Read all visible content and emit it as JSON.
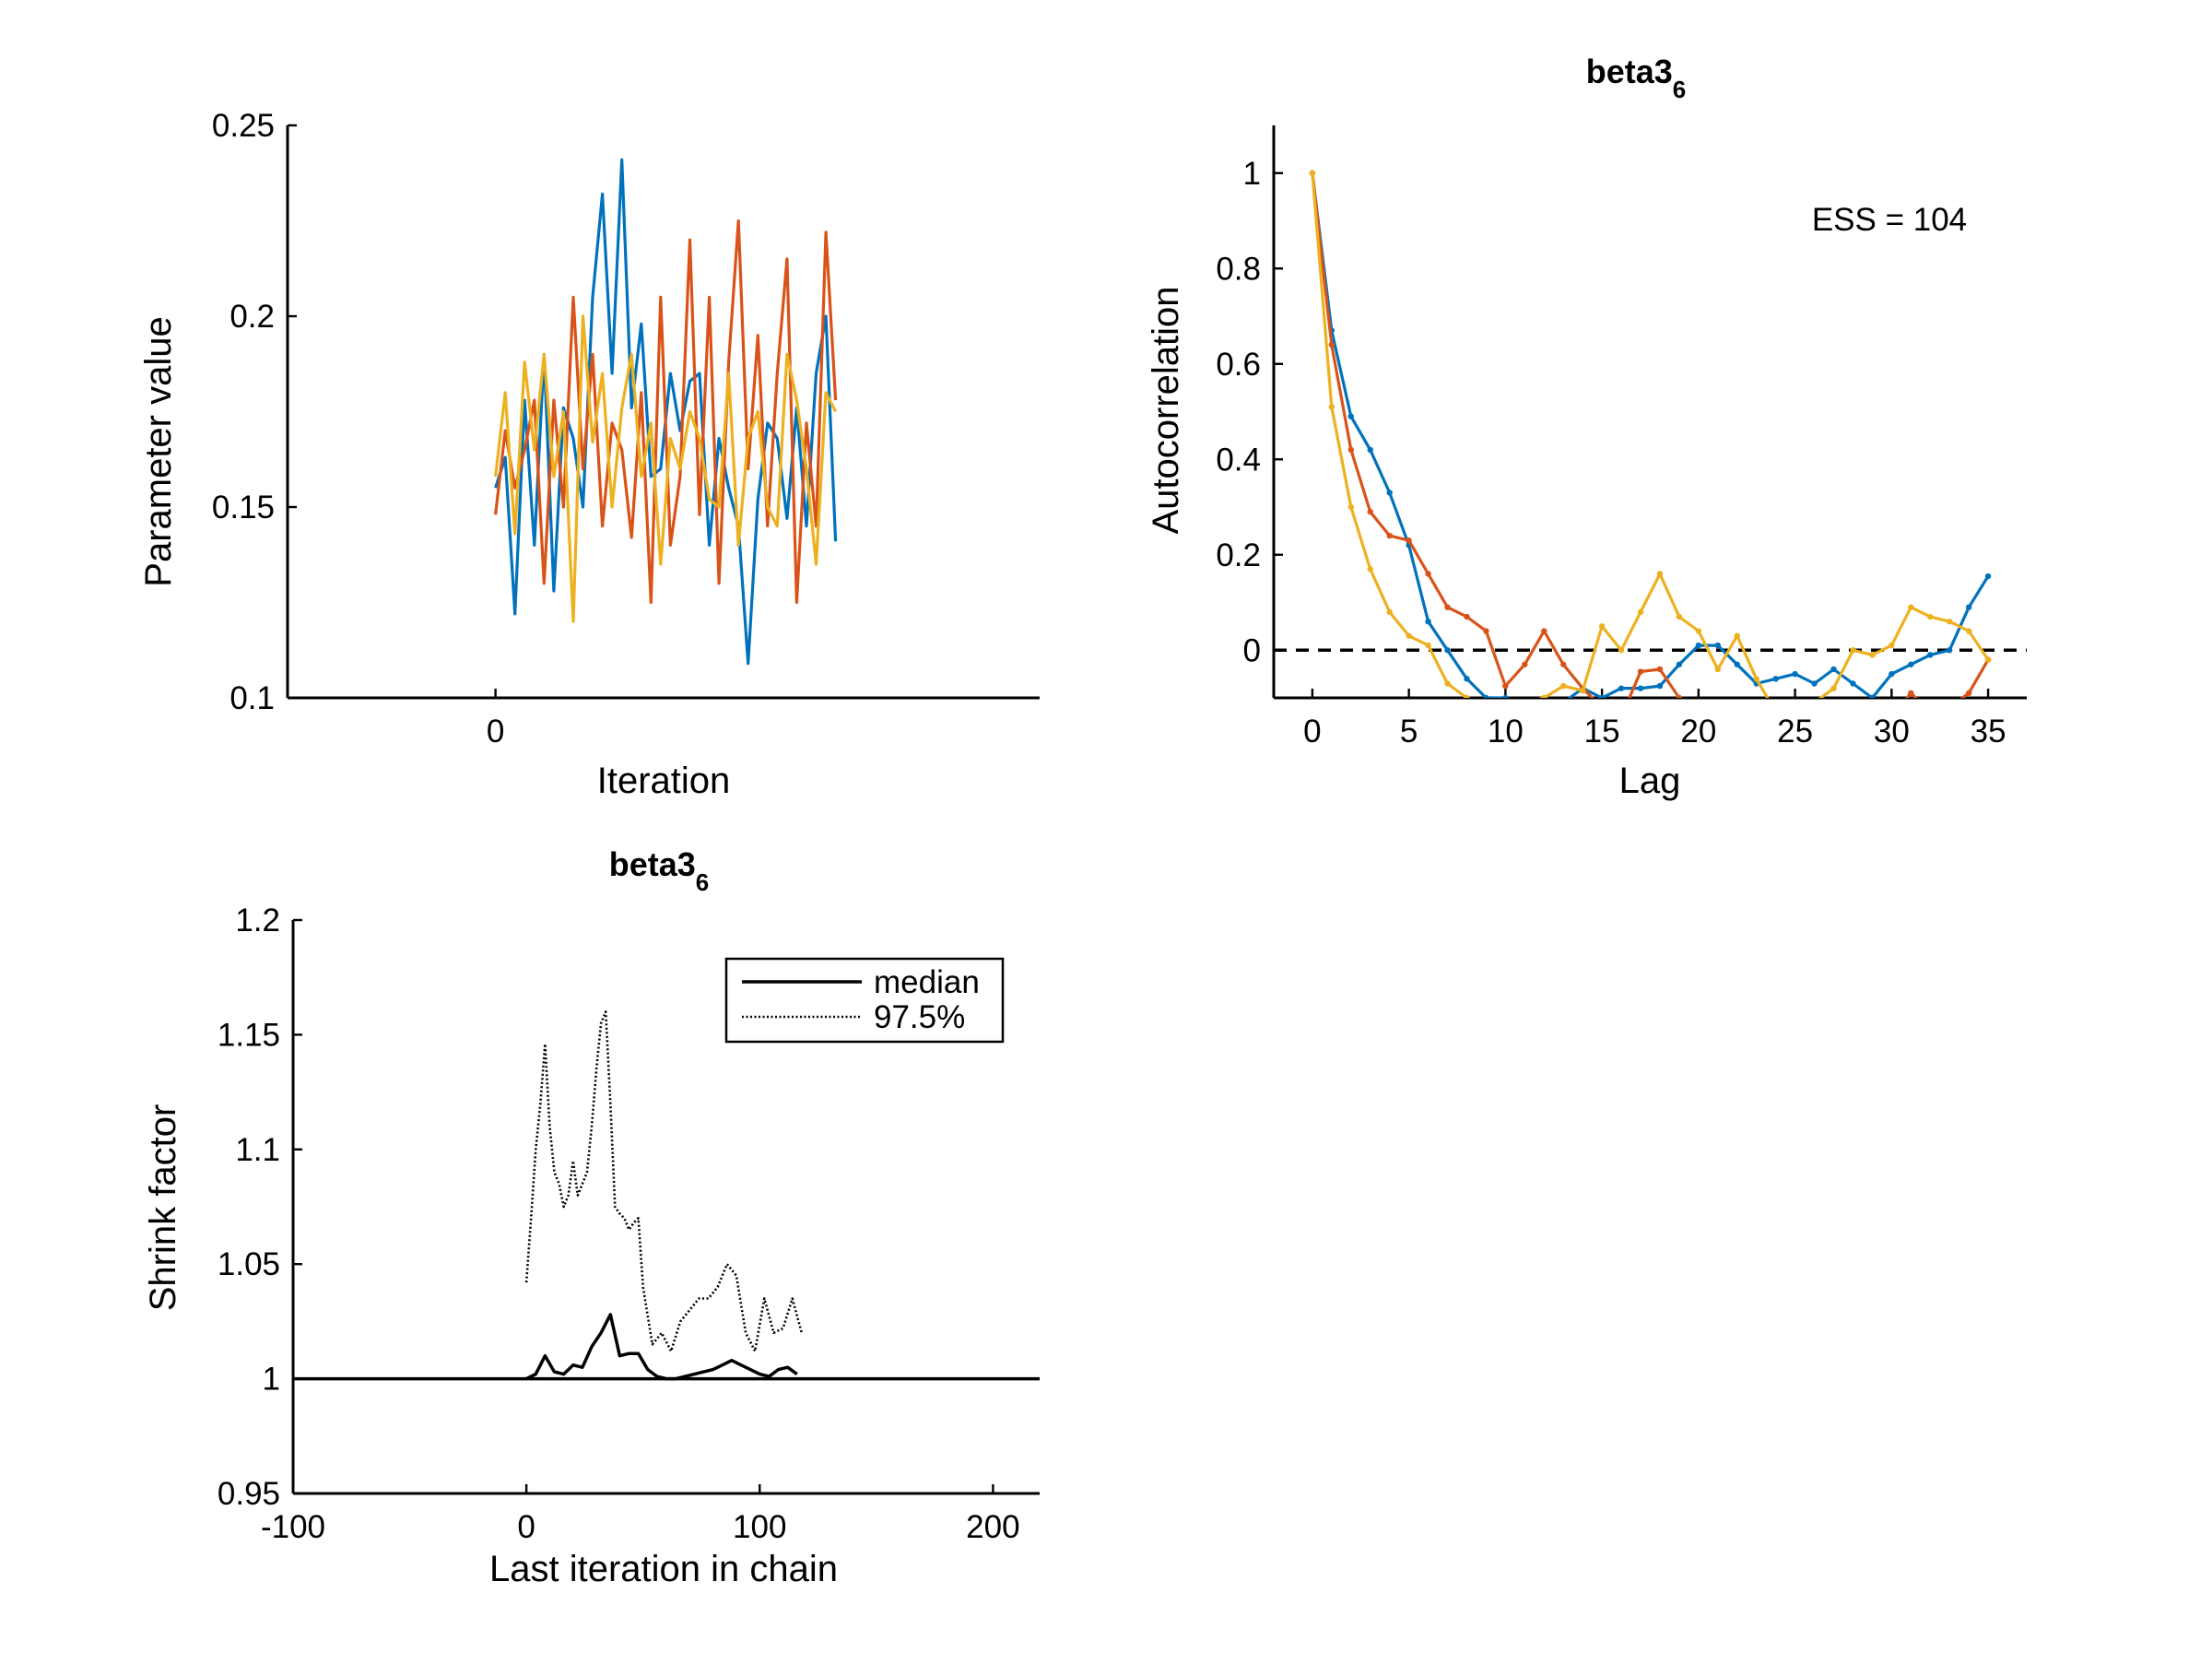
{
  "colors": {
    "blue": "#0072BD",
    "orange": "#D95319",
    "yellow": "#EDB120",
    "black": "#000000"
  },
  "chart_data": [
    {
      "type": "line",
      "title": "",
      "xlabel": "Iteration",
      "ylabel": "Parameter value",
      "xlim": [
        -107,
        280
      ],
      "ylim": [
        0.1,
        0.25
      ],
      "xticks": [
        0
      ],
      "yticks": [
        0.1,
        0.15,
        0.2,
        0.25
      ],
      "ytick_labels": [
        "0.1",
        "0.15",
        "0.2",
        "0.25"
      ],
      "series": [
        {
          "color": "blue",
          "x": [
            0,
            5,
            10,
            15,
            20,
            25,
            30,
            35,
            40,
            45,
            50,
            55,
            60,
            65,
            70,
            75,
            80,
            85,
            90,
            95,
            100,
            105,
            110,
            115,
            120,
            125,
            130,
            135,
            140,
            145,
            150,
            155,
            160,
            165,
            170,
            175
          ],
          "y": [
            0.155,
            0.163,
            0.122,
            0.178,
            0.14,
            0.19,
            0.128,
            0.176,
            0.168,
            0.15,
            0.205,
            0.232,
            0.185,
            0.241,
            0.176,
            0.198,
            0.158,
            0.16,
            0.185,
            0.17,
            0.183,
            0.185,
            0.14,
            0.168,
            0.155,
            0.145,
            0.109,
            0.152,
            0.172,
            0.168,
            0.147,
            0.176,
            0.145,
            0.185,
            0.2,
            0.141
          ]
        },
        {
          "color": "orange",
          "x": [
            0,
            5,
            10,
            15,
            20,
            25,
            30,
            35,
            40,
            45,
            50,
            55,
            60,
            65,
            70,
            75,
            80,
            85,
            90,
            95,
            100,
            105,
            110,
            115,
            120,
            125,
            130,
            135,
            140,
            145,
            150,
            155,
            160,
            165,
            170,
            175
          ],
          "y": [
            0.148,
            0.17,
            0.155,
            0.165,
            0.178,
            0.13,
            0.178,
            0.15,
            0.205,
            0.16,
            0.19,
            0.145,
            0.172,
            0.165,
            0.142,
            0.18,
            0.125,
            0.205,
            0.14,
            0.158,
            0.22,
            0.148,
            0.205,
            0.13,
            0.188,
            0.225,
            0.16,
            0.195,
            0.145,
            0.185,
            0.215,
            0.125,
            0.172,
            0.145,
            0.222,
            0.178
          ]
        },
        {
          "color": "yellow",
          "x": [
            0,
            5,
            10,
            15,
            20,
            25,
            30,
            35,
            40,
            45,
            50,
            55,
            60,
            65,
            70,
            75,
            80,
            85,
            90,
            95,
            100,
            105,
            110,
            115,
            120,
            125,
            130,
            135,
            140,
            145,
            150,
            155,
            160,
            165,
            170,
            175
          ],
          "y": [
            0.158,
            0.18,
            0.143,
            0.188,
            0.165,
            0.19,
            0.158,
            0.175,
            0.12,
            0.2,
            0.167,
            0.185,
            0.15,
            0.176,
            0.19,
            0.158,
            0.172,
            0.135,
            0.168,
            0.16,
            0.175,
            0.168,
            0.152,
            0.15,
            0.185,
            0.14,
            0.168,
            0.175,
            0.15,
            0.145,
            0.19,
            0.178,
            0.16,
            0.135,
            0.18,
            0.175
          ]
        }
      ]
    },
    {
      "type": "line",
      "title": "beta3",
      "title_subscript": "6",
      "xlabel": "Lag",
      "ylabel": "Autocorrelation",
      "xlim": [
        -2,
        37
      ],
      "ylim": [
        -0.1,
        1.1
      ],
      "xticks": [
        0,
        5,
        10,
        15,
        20,
        25,
        30,
        35
      ],
      "yticks": [
        0,
        0.2,
        0.4,
        0.6,
        0.8,
        1
      ],
      "annotation": "ESS = 104",
      "reference_line": {
        "y": 0,
        "style": "dashed"
      },
      "series": [
        {
          "color": "blue",
          "x": [
            0,
            1,
            2,
            3,
            4,
            5,
            6,
            7,
            8,
            9,
            10,
            11,
            12,
            13,
            14,
            15,
            16,
            17,
            18,
            19,
            20,
            21,
            22,
            23,
            24,
            25,
            26,
            27,
            28,
            29,
            30,
            31,
            32,
            33,
            34,
            35
          ],
          "y": [
            1.0,
            0.67,
            0.49,
            0.42,
            0.33,
            0.22,
            0.06,
            0.0,
            -0.06,
            -0.1,
            -0.1,
            -0.13,
            -0.14,
            -0.11,
            -0.08,
            -0.1,
            -0.08,
            -0.08,
            -0.075,
            -0.03,
            0.01,
            0.01,
            -0.03,
            -0.07,
            -0.06,
            -0.05,
            -0.07,
            -0.04,
            -0.07,
            -0.1,
            -0.05,
            -0.03,
            -0.01,
            0.0,
            0.09,
            0.155
          ]
        },
        {
          "color": "orange",
          "x": [
            0,
            1,
            2,
            3,
            4,
            5,
            6,
            7,
            8,
            9,
            10,
            11,
            12,
            13,
            14,
            15,
            16,
            17,
            18,
            19,
            20,
            21,
            22,
            23,
            24,
            25,
            26,
            27,
            28,
            29,
            30,
            31,
            32,
            33,
            34,
            35
          ],
          "y": [
            1.0,
            0.64,
            0.42,
            0.29,
            0.24,
            0.23,
            0.16,
            0.09,
            0.07,
            0.04,
            -0.075,
            -0.03,
            0.04,
            -0.03,
            -0.08,
            -0.12,
            -0.14,
            -0.045,
            -0.04,
            -0.1,
            -0.14,
            -0.15,
            -0.16,
            -0.2,
            -0.25,
            -0.22,
            -0.2,
            -0.18,
            -0.15,
            -0.12,
            -0.14,
            -0.09,
            -0.13,
            -0.12,
            -0.09,
            -0.02
          ]
        },
        {
          "color": "yellow",
          "x": [
            0,
            1,
            2,
            3,
            4,
            5,
            6,
            7,
            8,
            9,
            10,
            11,
            12,
            13,
            14,
            15,
            16,
            17,
            18,
            19,
            20,
            21,
            22,
            23,
            24,
            25,
            26,
            27,
            28,
            29,
            30,
            31,
            32,
            33,
            34,
            35
          ],
          "y": [
            1.0,
            0.51,
            0.3,
            0.17,
            0.08,
            0.03,
            0.01,
            -0.07,
            -0.1,
            -0.15,
            -0.13,
            -0.11,
            -0.1,
            -0.075,
            -0.085,
            0.05,
            0.0,
            0.08,
            0.16,
            0.07,
            0.04,
            -0.04,
            0.03,
            -0.06,
            -0.13,
            -0.13,
            -0.11,
            -0.08,
            0.0,
            -0.01,
            0.01,
            0.09,
            0.07,
            0.06,
            0.04,
            -0.02
          ]
        }
      ]
    },
    {
      "type": "line",
      "title": "beta3",
      "title_subscript": "6",
      "xlabel": "Last iteration in chain",
      "ylabel": "Shrink factor",
      "xlim": [
        -100,
        220
      ],
      "ylim": [
        0.95,
        1.2
      ],
      "xticks": [
        -100,
        0,
        100,
        200
      ],
      "yticks": [
        0.95,
        1,
        1.05,
        1.1,
        1.15,
        1.2
      ],
      "ytick_labels": [
        "0.95",
        "1",
        "1.05",
        "1.1",
        "1.15",
        "1.2"
      ],
      "legend": {
        "position": "top-right",
        "entries": [
          "median",
          "97.5%"
        ]
      },
      "reference_line": {
        "y": 1,
        "style": "solid"
      },
      "series": [
        {
          "name": "median",
          "style": "solid",
          "x": [
            0,
            4,
            8,
            12,
            16,
            20,
            24,
            28,
            32,
            36,
            40,
            44,
            48,
            52,
            56,
            60,
            64,
            68,
            72,
            76,
            80,
            84,
            88,
            92,
            96,
            100,
            104,
            108,
            112,
            116
          ],
          "y": [
            1.0,
            1.002,
            1.01,
            1.003,
            1.002,
            1.006,
            1.005,
            1.014,
            1.02,
            1.028,
            1.01,
            1.011,
            1.011,
            1.004,
            1.001,
            1.0,
            1.0,
            1.001,
            1.002,
            1.003,
            1.004,
            1.006,
            1.008,
            1.006,
            1.004,
            1.002,
            1.001,
            1.004,
            1.005,
            1.002
          ]
        },
        {
          "name": "97.5%",
          "style": "dotted",
          "x": [
            0,
            2,
            4,
            6,
            8,
            10,
            12,
            14,
            16,
            18,
            20,
            22,
            24,
            26,
            28,
            30,
            32,
            34,
            36,
            38,
            40,
            42,
            44,
            46,
            48,
            50,
            54,
            58,
            62,
            66,
            70,
            74,
            78,
            82,
            86,
            90,
            94,
            98,
            102,
            106,
            110,
            114,
            118
          ],
          "y": [
            1.042,
            1.07,
            1.1,
            1.12,
            1.146,
            1.11,
            1.09,
            1.085,
            1.075,
            1.08,
            1.095,
            1.08,
            1.085,
            1.09,
            1.11,
            1.135,
            1.155,
            1.16,
            1.12,
            1.075,
            1.072,
            1.07,
            1.065,
            1.068,
            1.07,
            1.04,
            1.015,
            1.02,
            1.012,
            1.025,
            1.03,
            1.035,
            1.035,
            1.04,
            1.05,
            1.045,
            1.02,
            1.012,
            1.035,
            1.02,
            1.022,
            1.035,
            1.02
          ]
        }
      ]
    }
  ]
}
